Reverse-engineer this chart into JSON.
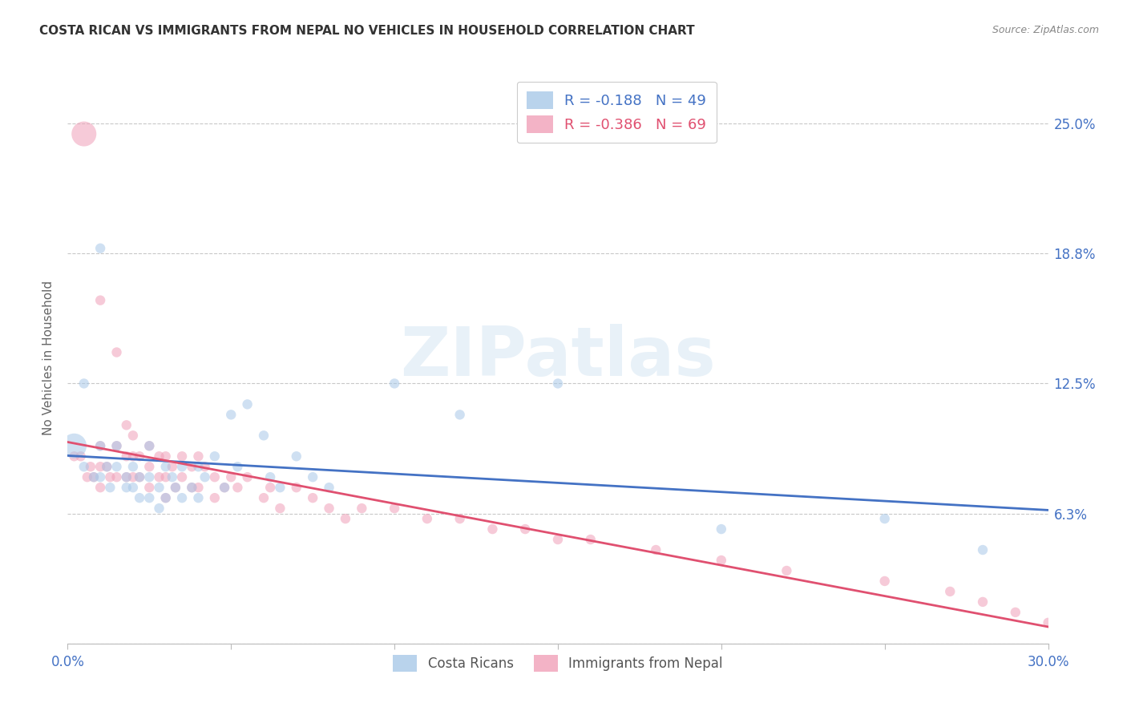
{
  "title": "COSTA RICAN VS IMMIGRANTS FROM NEPAL NO VEHICLES IN HOUSEHOLD CORRELATION CHART",
  "source": "Source: ZipAtlas.com",
  "ylabel": "No Vehicles in Household",
  "xlim": [
    0.0,
    0.3
  ],
  "ylim": [
    0.0,
    0.275
  ],
  "xtick_positions": [
    0.0,
    0.05,
    0.1,
    0.15,
    0.2,
    0.25,
    0.3
  ],
  "xticklabels": [
    "0.0%",
    "",
    "",
    "",
    "",
    "",
    "30.0%"
  ],
  "ytick_values": [
    0.0,
    0.0625,
    0.125,
    0.1875,
    0.25
  ],
  "ytick_labels": [
    "",
    "6.3%",
    "12.5%",
    "18.8%",
    "25.0%"
  ],
  "legend_label1": "Costa Ricans",
  "legend_label2": "Immigrants from Nepal",
  "legend_r1": "R = -0.188",
  "legend_n1": "N = 49",
  "legend_r2": "R = -0.386",
  "legend_n2": "N = 69",
  "color1": "#a8c8e8",
  "color2": "#f0a0b8",
  "line_color1": "#4472c4",
  "line_color2": "#e05070",
  "watermark_text": "ZIPatlas",
  "background_color": "#ffffff",
  "blue_x": [
    0.002,
    0.005,
    0.008,
    0.01,
    0.01,
    0.01,
    0.012,
    0.013,
    0.015,
    0.015,
    0.018,
    0.018,
    0.02,
    0.02,
    0.022,
    0.022,
    0.025,
    0.025,
    0.025,
    0.028,
    0.028,
    0.03,
    0.03,
    0.032,
    0.033,
    0.035,
    0.035,
    0.038,
    0.04,
    0.04,
    0.042,
    0.045,
    0.048,
    0.05,
    0.052,
    0.055,
    0.06,
    0.062,
    0.065,
    0.07,
    0.075,
    0.08,
    0.1,
    0.12,
    0.15,
    0.2,
    0.25,
    0.28,
    0.005
  ],
  "blue_y": [
    0.095,
    0.085,
    0.08,
    0.19,
    0.095,
    0.08,
    0.085,
    0.075,
    0.095,
    0.085,
    0.08,
    0.075,
    0.085,
    0.075,
    0.08,
    0.07,
    0.095,
    0.08,
    0.07,
    0.075,
    0.065,
    0.085,
    0.07,
    0.08,
    0.075,
    0.085,
    0.07,
    0.075,
    0.085,
    0.07,
    0.08,
    0.09,
    0.075,
    0.11,
    0.085,
    0.115,
    0.1,
    0.08,
    0.075,
    0.09,
    0.08,
    0.075,
    0.125,
    0.11,
    0.125,
    0.055,
    0.06,
    0.045,
    0.125
  ],
  "blue_sizes": [
    500,
    80,
    80,
    80,
    80,
    80,
    80,
    80,
    80,
    80,
    80,
    80,
    80,
    80,
    80,
    80,
    80,
    80,
    80,
    80,
    80,
    80,
    80,
    80,
    80,
    80,
    80,
    80,
    80,
    80,
    80,
    80,
    80,
    80,
    80,
    80,
    80,
    80,
    80,
    80,
    80,
    80,
    80,
    80,
    80,
    80,
    80,
    80,
    80
  ],
  "pink_x": [
    0.002,
    0.005,
    0.007,
    0.008,
    0.01,
    0.01,
    0.01,
    0.01,
    0.012,
    0.013,
    0.015,
    0.015,
    0.015,
    0.018,
    0.018,
    0.018,
    0.02,
    0.02,
    0.02,
    0.022,
    0.022,
    0.025,
    0.025,
    0.025,
    0.028,
    0.028,
    0.03,
    0.03,
    0.03,
    0.032,
    0.033,
    0.035,
    0.035,
    0.038,
    0.038,
    0.04,
    0.04,
    0.042,
    0.045,
    0.045,
    0.048,
    0.05,
    0.052,
    0.055,
    0.06,
    0.062,
    0.065,
    0.07,
    0.075,
    0.08,
    0.085,
    0.09,
    0.1,
    0.11,
    0.12,
    0.13,
    0.14,
    0.15,
    0.16,
    0.18,
    0.2,
    0.22,
    0.25,
    0.27,
    0.28,
    0.29,
    0.3,
    0.004,
    0.006
  ],
  "pink_y": [
    0.09,
    0.245,
    0.085,
    0.08,
    0.165,
    0.095,
    0.085,
    0.075,
    0.085,
    0.08,
    0.14,
    0.095,
    0.08,
    0.105,
    0.09,
    0.08,
    0.1,
    0.09,
    0.08,
    0.09,
    0.08,
    0.095,
    0.085,
    0.075,
    0.09,
    0.08,
    0.09,
    0.08,
    0.07,
    0.085,
    0.075,
    0.09,
    0.08,
    0.085,
    0.075,
    0.09,
    0.075,
    0.085,
    0.08,
    0.07,
    0.075,
    0.08,
    0.075,
    0.08,
    0.07,
    0.075,
    0.065,
    0.075,
    0.07,
    0.065,
    0.06,
    0.065,
    0.065,
    0.06,
    0.06,
    0.055,
    0.055,
    0.05,
    0.05,
    0.045,
    0.04,
    0.035,
    0.03,
    0.025,
    0.02,
    0.015,
    0.01,
    0.09,
    0.08
  ],
  "pink_sizes": [
    80,
    500,
    80,
    80,
    80,
    80,
    80,
    80,
    80,
    80,
    80,
    80,
    80,
    80,
    80,
    80,
    80,
    80,
    80,
    80,
    80,
    80,
    80,
    80,
    80,
    80,
    80,
    80,
    80,
    80,
    80,
    80,
    80,
    80,
    80,
    80,
    80,
    80,
    80,
    80,
    80,
    80,
    80,
    80,
    80,
    80,
    80,
    80,
    80,
    80,
    80,
    80,
    80,
    80,
    80,
    80,
    80,
    80,
    80,
    80,
    80,
    80,
    80,
    80,
    80,
    80,
    80,
    80,
    80
  ]
}
